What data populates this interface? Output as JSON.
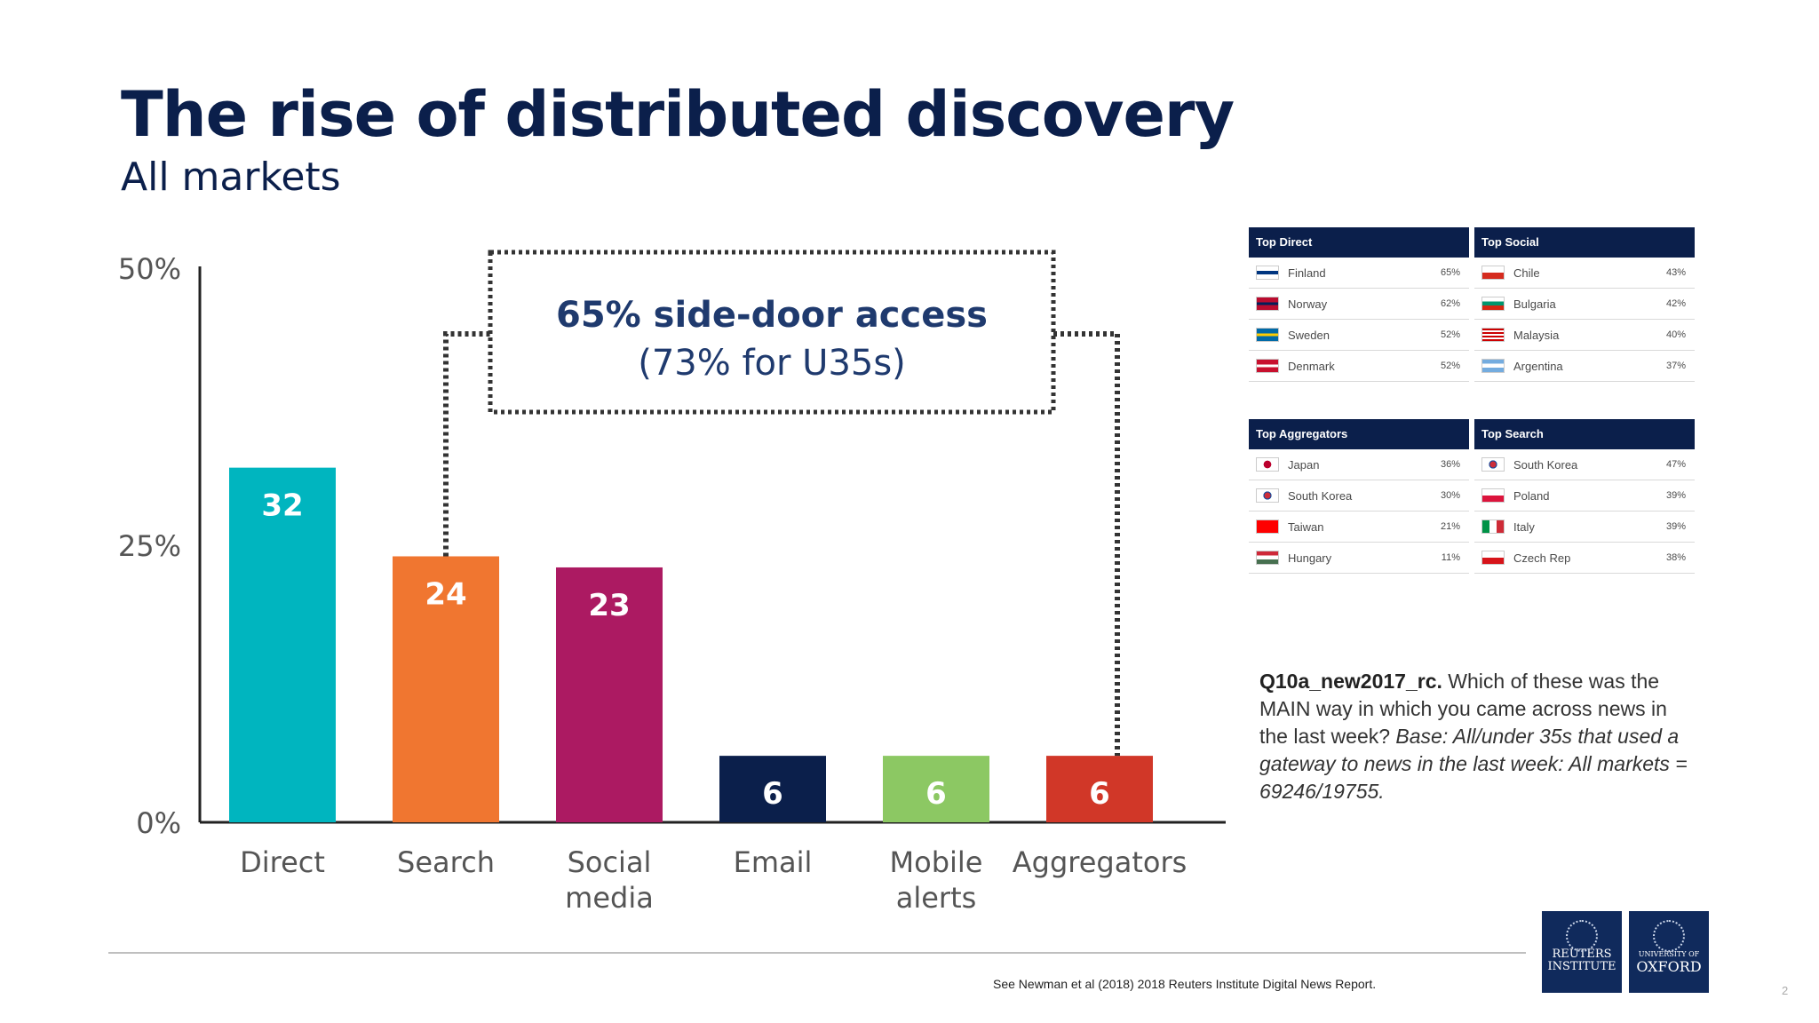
{
  "slide": {
    "title": "The rise of distributed discovery",
    "subtitle": "All markets",
    "page_number": "2"
  },
  "chart_data": {
    "type": "bar",
    "categories": [
      "Direct",
      "Search",
      "Social media",
      "Email",
      "Mobile alerts",
      "Aggregators"
    ],
    "category_lines": [
      [
        "Direct"
      ],
      [
        "Search"
      ],
      [
        "Social",
        "media"
      ],
      [
        "Email"
      ],
      [
        "Mobile",
        "alerts"
      ],
      [
        "Aggregators"
      ]
    ],
    "values": [
      32,
      24,
      23,
      6,
      6,
      6
    ],
    "data_labels": [
      "32",
      "24",
      "23",
      "6",
      "6",
      "6"
    ],
    "colors": [
      "#00b5bf",
      "#f07630",
      "#ac1a62",
      "#0b1f4b",
      "#8cc863",
      "#d13728"
    ],
    "y_ticks": [
      "0%",
      "25%",
      "50%"
    ],
    "ylim": [
      0,
      50
    ],
    "annotation": {
      "line1": "65% side-door access",
      "line2": "(73% for U35s)",
      "spans": [
        "Search",
        "Aggregators"
      ]
    }
  },
  "market_tables": [
    {
      "heading": "Top Direct",
      "rows": [
        {
          "country": "Finland",
          "value": "65%",
          "flag": "finland-flag"
        },
        {
          "country": "Norway",
          "value": "62%",
          "flag": "norway-flag"
        },
        {
          "country": "Sweden",
          "value": "52%",
          "flag": "sweden-flag"
        },
        {
          "country": "Denmark",
          "value": "52%",
          "flag": "denmark-flag"
        }
      ]
    },
    {
      "heading": "Top Social",
      "rows": [
        {
          "country": "Chile",
          "value": "43%",
          "flag": "chile-flag"
        },
        {
          "country": "Bulgaria",
          "value": "42%",
          "flag": "bulgaria-flag"
        },
        {
          "country": "Malaysia",
          "value": "40%",
          "flag": "malaysia-flag"
        },
        {
          "country": "Argentina",
          "value": "37%",
          "flag": "argentina-flag"
        }
      ]
    },
    {
      "heading": "Top Aggregators",
      "rows": [
        {
          "country": "Japan",
          "value": "36%",
          "flag": "japan-flag"
        },
        {
          "country": "South Korea",
          "value": "30%",
          "flag": "south-korea-flag"
        },
        {
          "country": "Taiwan",
          "value": "21%",
          "flag": "taiwan-flag"
        },
        {
          "country": "Hungary",
          "value": "11%",
          "flag": "hungary-flag"
        }
      ]
    },
    {
      "heading": "Top Search",
      "rows": [
        {
          "country": "South Korea",
          "value": "47%",
          "flag": "south-korea-flag"
        },
        {
          "country": "Poland",
          "value": "39%",
          "flag": "poland-flag"
        },
        {
          "country": "Italy",
          "value": "39%",
          "flag": "italy-flag"
        },
        {
          "country": "Czech Rep",
          "value": "38%",
          "flag": "czech-flag"
        }
      ]
    }
  ],
  "note": {
    "code": "Q10a_new2017_rc.",
    "question": " Which of these was the MAIN way in which you came across news in the last week? ",
    "base": "Base: All/under 35s that used a gateway to news in the last week: All markets = 69246/19755."
  },
  "footer": {
    "citation": "See Newman et al (2018) 2018 Reuters Institute Digital News Report.",
    "logo_left": [
      "REUTERS",
      "INSTITUTE"
    ],
    "logo_right": [
      "UNIVERSITY OF",
      "OXFORD"
    ]
  },
  "flag_colors": {
    "finland-flag": "linear-gradient(#fff 0 35%, #003580 35% 65%, #fff 65%)",
    "norway-flag": "linear-gradient(#ba0c2f 0 38%, #00205b 38% 62%, #ba0c2f 62%)",
    "sweden-flag": "linear-gradient(#006aa7 0 38%, #fecc00 38% 62%, #006aa7 62%)",
    "denmark-flag": "linear-gradient(#c8102e 0 40%, #fff 40% 60%, #c8102e 60%)",
    "chile-flag": "linear-gradient(#fff 0 50%, #d52b1e 50%)",
    "bulgaria-flag": "linear-gradient(#fff 0 33%, #00966e 33% 66%, #d62612 66%)",
    "malaysia-flag": "repeating-linear-gradient(#cc0001 0 2px, #fff 2px 4px)",
    "argentina-flag": "linear-gradient(#74acdf 0 33%, #fff 33% 66%, #74acdf 66%)",
    "japan-flag": "radial-gradient(circle, #bc002d 0 30%, #fff 32%)",
    "south-korea-flag": "radial-gradient(circle, #cd2e3a 0 25%, #0047a0 26% 32%, #fff 34%)",
    "taiwan-flag": "linear-gradient(#fe0000, #fe0000)",
    "hungary-flag": "linear-gradient(#ce2939 0 33%, #fff 33% 66%, #477050 66%)",
    "poland-flag": "linear-gradient(#fff 0 50%, #dc143c 50%)",
    "italy-flag": "linear-gradient(90deg, #009246 0 33%, #fff 33% 66%, #ce2b37 66%)",
    "czech-flag": "linear-gradient(#fff 0 50%, #d7141a 50%)"
  }
}
